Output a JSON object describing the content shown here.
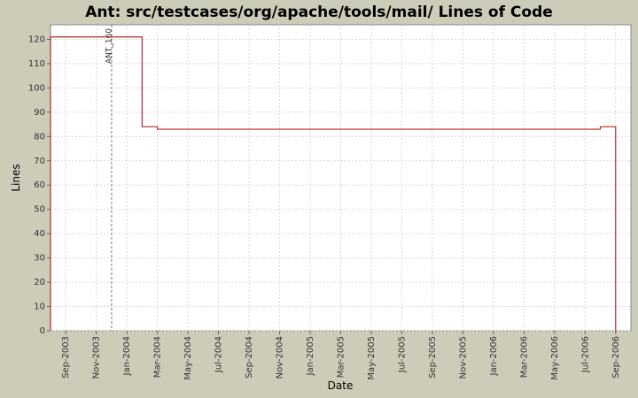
{
  "chart_data": {
    "type": "step-line",
    "title": "Ant: src/testcases/org/apache/tools/mail/ Lines of Code",
    "x_label": "Date",
    "y_label": "Lines",
    "x": [
      "2003-08",
      "2003-08",
      "2004-02",
      "2004-03",
      "2006-08",
      "2006-09"
    ],
    "series": [
      {
        "name": "Lines",
        "color": "#b8282d",
        "values": [
          0,
          121,
          84,
          83,
          84,
          0
        ]
      }
    ],
    "xlim": [
      "2003-08",
      "2006-10"
    ],
    "xticks": [
      {
        "value": "2003-09",
        "label": "Sep-2003"
      },
      {
        "value": "2003-11",
        "label": "Nov-2003"
      },
      {
        "value": "2004-01",
        "label": "Jan-2004"
      },
      {
        "value": "2004-03",
        "label": "Mar-2004"
      },
      {
        "value": "2004-05",
        "label": "May-2004"
      },
      {
        "value": "2004-07",
        "label": "Jul-2004"
      },
      {
        "value": "2004-09",
        "label": "Sep-2004"
      },
      {
        "value": "2004-11",
        "label": "Nov-2004"
      },
      {
        "value": "2005-01",
        "label": "Jan-2005"
      },
      {
        "value": "2005-03",
        "label": "Mar-2005"
      },
      {
        "value": "2005-05",
        "label": "May-2005"
      },
      {
        "value": "2005-07",
        "label": "Jul-2005"
      },
      {
        "value": "2005-09",
        "label": "Sep-2005"
      },
      {
        "value": "2005-11",
        "label": "Nov-2005"
      },
      {
        "value": "2006-01",
        "label": "Jan-2006"
      },
      {
        "value": "2006-03",
        "label": "Mar-2006"
      },
      {
        "value": "2006-05",
        "label": "May-2006"
      },
      {
        "value": "2006-07",
        "label": "Jul-2006"
      },
      {
        "value": "2006-09",
        "label": "Sep-2006"
      }
    ],
    "ylim": [
      0,
      126
    ],
    "yticks": [
      0,
      10,
      20,
      30,
      40,
      50,
      60,
      70,
      80,
      90,
      100,
      110,
      120
    ],
    "grid": true,
    "markers": [
      {
        "x": "2003-12",
        "label": "ANT_160"
      }
    ]
  }
}
